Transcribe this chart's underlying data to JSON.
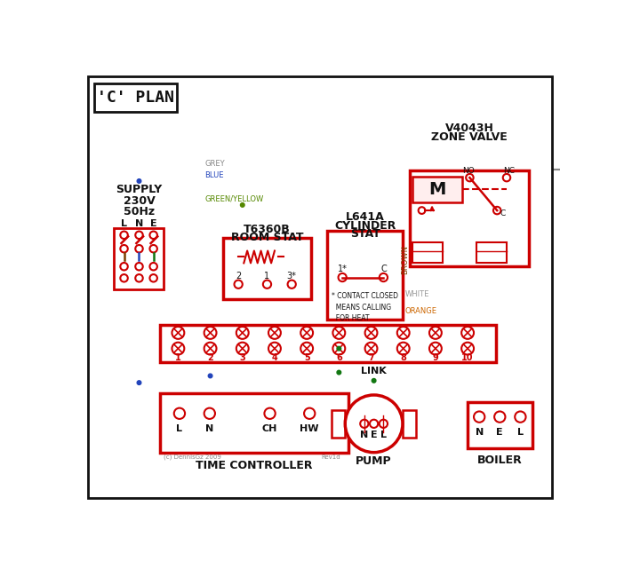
{
  "title": "'C' PLAN",
  "zone_valve_title": [
    "V4043H",
    "ZONE VALVE"
  ],
  "room_stat_title": [
    "T6360B",
    "ROOM STAT"
  ],
  "cyl_stat_title": [
    "L641A",
    "CYLINDER",
    "STAT"
  ],
  "time_controller_label": "TIME CONTROLLER",
  "tc_terminals": [
    "L",
    "N",
    "CH",
    "HW"
  ],
  "pump_label": "PUMP",
  "boiler_label": "BOILER",
  "link_label": "LINK",
  "contact_note": "* CONTACT CLOSED\n  MEANS CALLING\n  FOR HEAT",
  "supply_lines": [
    "SUPPLY",
    "230V",
    "50Hz"
  ],
  "wire_labels": {
    "grey": "GREY",
    "blue": "BLUE",
    "green_yellow": "GREEN/YELLOW",
    "brown": "BROWN",
    "white": "WHITE",
    "orange": "ORANGE"
  },
  "colors": {
    "red": "#cc0000",
    "black": "#111111",
    "grey": "#888888",
    "blue": "#2244bb",
    "green": "#117711",
    "brown": "#7B3F00",
    "orange": "#cc6600",
    "white_wire": "#999999",
    "green_yellow": "#558800"
  },
  "copyright": "(c) DennisGz 2009",
  "rev": "Rev1d"
}
